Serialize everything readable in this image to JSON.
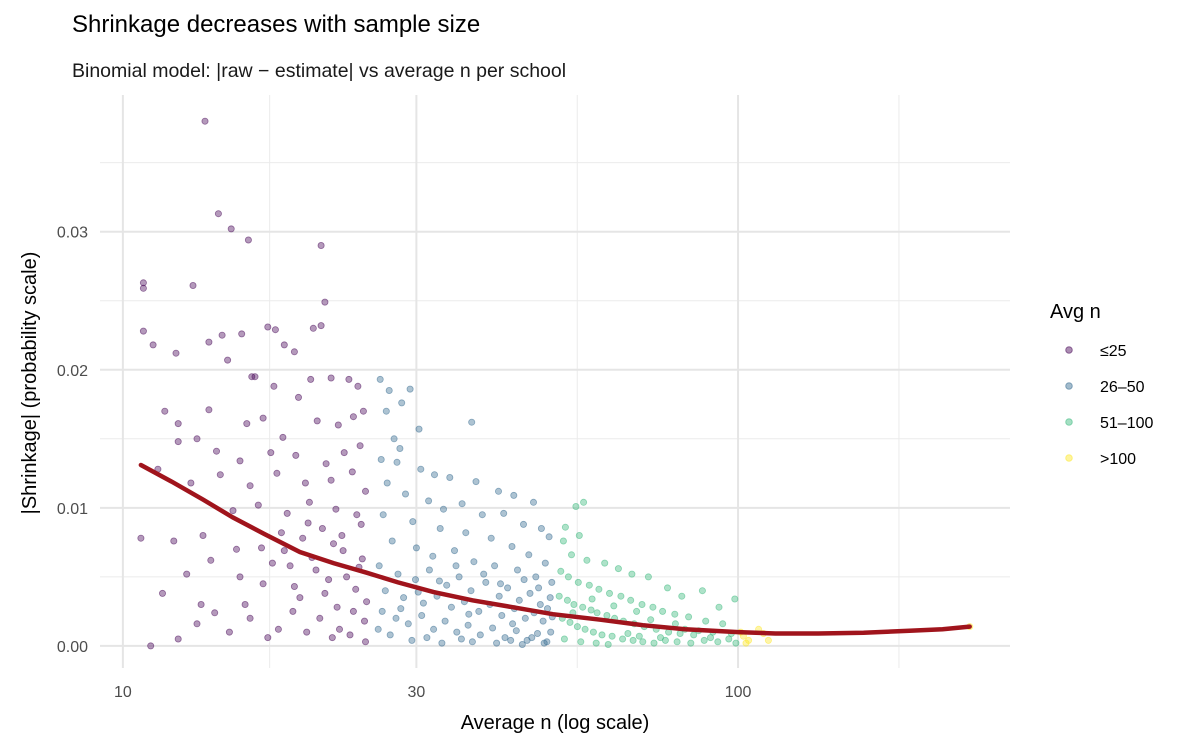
{
  "chart_data": {
    "type": "scatter",
    "title": "Shrinkage decreases with sample size",
    "subtitle": "Binomial model: |raw − estimate| vs average n per school",
    "xlabel": "Average n (log scale)",
    "ylabel": "|Shrinkage| (probability scale)",
    "x_scale": "log10",
    "xlim": [
      9.18,
      276.7
    ],
    "ylim": [
      -0.0016,
      0.0399
    ],
    "x_ticks": [
      10,
      30,
      100
    ],
    "x_tick_labels": [
      "10",
      "30",
      "100"
    ],
    "y_ticks": [
      0,
      0.01,
      0.02,
      0.03
    ],
    "y_tick_labels": [
      "0.00",
      "0.01",
      "0.02",
      "0.03"
    ],
    "grid": true,
    "legend": {
      "title": "Avg n",
      "placement": "right",
      "entries": [
        {
          "label": "≤25",
          "color": "#440154",
          "max_n": 25
        },
        {
          "label": "26–50",
          "color": "#31688E",
          "max_n": 50
        },
        {
          "label": "51–100",
          "color": "#35B779",
          "max_n": 100
        },
        {
          "label": ">100",
          "color": "#FDE725",
          "max_n": 100000
        }
      ]
    },
    "trend": {
      "color": "#A0141C",
      "points": [
        [
          10.7,
          0.0131
        ],
        [
          12,
          0.0119
        ],
        [
          13.5,
          0.0106
        ],
        [
          15.1,
          0.0093
        ],
        [
          17,
          0.0081
        ],
        [
          19.4,
          0.0068
        ],
        [
          22,
          0.006
        ],
        [
          24.9,
          0.0053
        ],
        [
          28,
          0.0046
        ],
        [
          32,
          0.0039
        ],
        [
          37,
          0.0033
        ],
        [
          43,
          0.0028
        ],
        [
          50,
          0.0023
        ],
        [
          59.7,
          0.0019
        ],
        [
          70,
          0.0015
        ],
        [
          82,
          0.0012
        ],
        [
          100,
          0.001
        ],
        [
          115,
          0.0009
        ],
        [
          135,
          0.0009
        ],
        [
          160,
          0.00095
        ],
        [
          190,
          0.0011
        ],
        [
          215,
          0.0012
        ],
        [
          238,
          0.0014
        ]
      ]
    },
    "points": [
      [
        13.6,
        0.038
      ],
      [
        14.3,
        0.0313
      ],
      [
        15,
        0.0302
      ],
      [
        16,
        0.0294
      ],
      [
        21,
        0.029
      ],
      [
        21.3,
        0.0249
      ],
      [
        10.8,
        0.0228
      ],
      [
        10.8,
        0.0263
      ],
      [
        10.8,
        0.0259
      ],
      [
        13,
        0.0261
      ],
      [
        11.2,
        0.0218
      ],
      [
        12.2,
        0.0212
      ],
      [
        13.8,
        0.022
      ],
      [
        14.5,
        0.0225
      ],
      [
        15.6,
        0.0226
      ],
      [
        17.2,
        0.0231
      ],
      [
        17.7,
        0.0229
      ],
      [
        20.4,
        0.023
      ],
      [
        21,
        0.0232
      ],
      [
        18.3,
        0.0218
      ],
      [
        19,
        0.0213
      ],
      [
        14.8,
        0.0207
      ],
      [
        16.2,
        0.0195
      ],
      [
        16.4,
        0.0195
      ],
      [
        17.6,
        0.0188
      ],
      [
        20.2,
        0.0193
      ],
      [
        21.8,
        0.0194
      ],
      [
        23.3,
        0.0193
      ],
      [
        24.1,
        0.0188
      ],
      [
        19.3,
        0.018
      ],
      [
        11.7,
        0.017
      ],
      [
        12.3,
        0.0161
      ],
      [
        13.8,
        0.0171
      ],
      [
        15.9,
        0.0161
      ],
      [
        16.9,
        0.0165
      ],
      [
        18.2,
        0.0151
      ],
      [
        20.7,
        0.0163
      ],
      [
        22.4,
        0.016
      ],
      [
        23.7,
        0.0166
      ],
      [
        24.6,
        0.017
      ],
      [
        12.3,
        0.0148
      ],
      [
        13.2,
        0.015
      ],
      [
        14.2,
        0.0141
      ],
      [
        15.5,
        0.0134
      ],
      [
        17.4,
        0.014
      ],
      [
        19.1,
        0.0138
      ],
      [
        21.4,
        0.0132
      ],
      [
        22.9,
        0.014
      ],
      [
        24.3,
        0.0145
      ],
      [
        11.4,
        0.0128
      ],
      [
        12.9,
        0.0118
      ],
      [
        14.4,
        0.0124
      ],
      [
        16.1,
        0.0116
      ],
      [
        17.8,
        0.0125
      ],
      [
        19.8,
        0.0118
      ],
      [
        21.8,
        0.012
      ],
      [
        23.6,
        0.0126
      ],
      [
        24.8,
        0.0112
      ],
      [
        10.7,
        0.0078
      ],
      [
        12.1,
        0.0076
      ],
      [
        13.5,
        0.008
      ],
      [
        15.1,
        0.0098
      ],
      [
        16.6,
        0.0102
      ],
      [
        18.5,
        0.0096
      ],
      [
        20.1,
        0.0104
      ],
      [
        22.2,
        0.0099
      ],
      [
        24.0,
        0.0095
      ],
      [
        11.6,
        0.0038
      ],
      [
        12.7,
        0.0052
      ],
      [
        13.9,
        0.0062
      ],
      [
        15.3,
        0.007
      ],
      [
        16.8,
        0.0071
      ],
      [
        18.1,
        0.0082
      ],
      [
        19.6,
        0.0078
      ],
      [
        21.1,
        0.0085
      ],
      [
        22.7,
        0.008
      ],
      [
        24.4,
        0.0088
      ],
      [
        12.3,
        0.0005
      ],
      [
        11.1,
        0.0
      ],
      [
        13.2,
        0.0016
      ],
      [
        14.1,
        0.0024
      ],
      [
        15.8,
        0.003
      ],
      [
        16.9,
        0.0045
      ],
      [
        17.9,
        0.0012
      ],
      [
        18.7,
        0.0058
      ],
      [
        19.4,
        0.0035
      ],
      [
        20.3,
        0.0064
      ],
      [
        20.9,
        0.002
      ],
      [
        21.6,
        0.0048
      ],
      [
        22.3,
        0.0028
      ],
      [
        22.8,
        0.0069
      ],
      [
        23.4,
        0.0008
      ],
      [
        23.9,
        0.0041
      ],
      [
        24.2,
        0.0057
      ],
      [
        24.7,
        0.0018
      ],
      [
        24.9,
        0.0032
      ],
      [
        21.9,
        0.0006
      ],
      [
        19.9,
        0.001
      ],
      [
        18.9,
        0.0025
      ],
      [
        17.2,
        0.0006
      ],
      [
        16.1,
        0.002
      ],
      [
        14.9,
        0.001
      ],
      [
        23.1,
        0.005
      ],
      [
        24.5,
        0.0063
      ],
      [
        22.0,
        0.0074
      ],
      [
        20.6,
        0.0055
      ],
      [
        19.0,
        0.0043
      ],
      [
        17.5,
        0.006
      ],
      [
        15.5,
        0.005
      ],
      [
        13.4,
        0.003
      ],
      [
        24.8,
        0.0003
      ],
      [
        23.7,
        0.0025
      ],
      [
        22.5,
        0.0012
      ],
      [
        21.3,
        0.0038
      ],
      [
        20.0,
        0.0089
      ],
      [
        18.3,
        0.0069
      ],
      [
        26.2,
        0.0193
      ],
      [
        27.1,
        0.0185
      ],
      [
        29.3,
        0.0186
      ],
      [
        28.4,
        0.0176
      ],
      [
        26.8,
        0.017
      ],
      [
        30.3,
        0.0157
      ],
      [
        36.9,
        0.0162
      ],
      [
        27.6,
        0.015
      ],
      [
        28.2,
        0.0143
      ],
      [
        26.3,
        0.0135
      ],
      [
        27.9,
        0.0133
      ],
      [
        30.5,
        0.0128
      ],
      [
        32.1,
        0.0124
      ],
      [
        34.0,
        0.0122
      ],
      [
        37.5,
        0.0119
      ],
      [
        40.8,
        0.0112
      ],
      [
        43.2,
        0.0109
      ],
      [
        46.5,
        0.0104
      ],
      [
        26.9,
        0.0118
      ],
      [
        28.8,
        0.011
      ],
      [
        31.4,
        0.0105
      ],
      [
        33.2,
        0.0099
      ],
      [
        35.6,
        0.0103
      ],
      [
        38.4,
        0.0095
      ],
      [
        41.6,
        0.0096
      ],
      [
        44.8,
        0.0088
      ],
      [
        47.9,
        0.0085
      ],
      [
        49.3,
        0.0079
      ],
      [
        26.5,
        0.0095
      ],
      [
        29.6,
        0.009
      ],
      [
        32.8,
        0.0085
      ],
      [
        36.1,
        0.0082
      ],
      [
        39.7,
        0.0078
      ],
      [
        42.9,
        0.0072
      ],
      [
        45.7,
        0.0066
      ],
      [
        48.6,
        0.006
      ],
      [
        27.4,
        0.0076
      ],
      [
        30.0,
        0.0071
      ],
      [
        31.9,
        0.0065
      ],
      [
        34.6,
        0.0069
      ],
      [
        37.2,
        0.0061
      ],
      [
        40.2,
        0.0058
      ],
      [
        43.8,
        0.0055
      ],
      [
        46.9,
        0.005
      ],
      [
        49.8,
        0.0046
      ],
      [
        26.1,
        0.0058
      ],
      [
        28.0,
        0.0052
      ],
      [
        29.9,
        0.0048
      ],
      [
        31.5,
        0.0055
      ],
      [
        33.6,
        0.0044
      ],
      [
        35.2,
        0.005
      ],
      [
        36.8,
        0.004
      ],
      [
        38.9,
        0.0046
      ],
      [
        40.9,
        0.0036
      ],
      [
        42.2,
        0.0042
      ],
      [
        44.1,
        0.0033
      ],
      [
        45.9,
        0.0038
      ],
      [
        47.7,
        0.003
      ],
      [
        49.5,
        0.0035
      ],
      [
        26.7,
        0.004
      ],
      [
        28.6,
        0.0035
      ],
      [
        30.8,
        0.0031
      ],
      [
        32.4,
        0.0036
      ],
      [
        34.2,
        0.0028
      ],
      [
        35.9,
        0.0032
      ],
      [
        37.9,
        0.0025
      ],
      [
        39.5,
        0.003
      ],
      [
        41.3,
        0.0022
      ],
      [
        43.3,
        0.0027
      ],
      [
        45.1,
        0.002
      ],
      [
        46.6,
        0.0024
      ],
      [
        48.2,
        0.0018
      ],
      [
        49.9,
        0.0021
      ],
      [
        26.4,
        0.0025
      ],
      [
        27.8,
        0.002
      ],
      [
        29.1,
        0.0016
      ],
      [
        30.6,
        0.0022
      ],
      [
        32.0,
        0.0012
      ],
      [
        33.4,
        0.0018
      ],
      [
        34.9,
        0.001
      ],
      [
        36.4,
        0.0015
      ],
      [
        38.1,
        0.0008
      ],
      [
        39.9,
        0.0013
      ],
      [
        41.8,
        0.0006
      ],
      [
        43.6,
        0.0011
      ],
      [
        45.4,
        0.0004
      ],
      [
        47.2,
        0.0009
      ],
      [
        48.9,
        0.0003
      ],
      [
        27.2,
        0.0008
      ],
      [
        29.5,
        0.0004
      ],
      [
        31.2,
        0.0006
      ],
      [
        33.0,
        0.0002
      ],
      [
        35.5,
        0.0005
      ],
      [
        37.0,
        0.0003
      ],
      [
        40.5,
        0.0002
      ],
      [
        42.7,
        0.0004
      ],
      [
        44.6,
        0.0001
      ],
      [
        46.2,
        0.0006
      ],
      [
        48.4,
        0.0002
      ],
      [
        49.6,
        0.001
      ],
      [
        26.0,
        0.0012
      ],
      [
        28.3,
        0.0027
      ],
      [
        30.2,
        0.0039
      ],
      [
        32.7,
        0.0047
      ],
      [
        34.8,
        0.0058
      ],
      [
        36.5,
        0.0023
      ],
      [
        38.6,
        0.0052
      ],
      [
        41.1,
        0.0045
      ],
      [
        43.0,
        0.0016
      ],
      [
        44.9,
        0.0048
      ],
      [
        47.4,
        0.0042
      ],
      [
        49.0,
        0.0027
      ],
      [
        54.5,
        0.0101
      ],
      [
        56.1,
        0.0104
      ],
      [
        52.4,
        0.0086
      ],
      [
        55.2,
        0.008
      ],
      [
        52.0,
        0.0076
      ],
      [
        53.6,
        0.0066
      ],
      [
        56.8,
        0.0062
      ],
      [
        60.7,
        0.006
      ],
      [
        63.9,
        0.0056
      ],
      [
        67.2,
        0.0052
      ],
      [
        71.5,
        0.005
      ],
      [
        76.8,
        0.0042
      ],
      [
        81.0,
        0.0036
      ],
      [
        87.5,
        0.004
      ],
      [
        93.1,
        0.0028
      ],
      [
        98.8,
        0.0034
      ],
      [
        51.5,
        0.0054
      ],
      [
        53.0,
        0.005
      ],
      [
        55.0,
        0.0046
      ],
      [
        57.3,
        0.0044
      ],
      [
        59.4,
        0.0041
      ],
      [
        61.8,
        0.0038
      ],
      [
        64.5,
        0.0036
      ],
      [
        66.9,
        0.0033
      ],
      [
        69.8,
        0.003
      ],
      [
        72.7,
        0.0028
      ],
      [
        75.4,
        0.0025
      ],
      [
        78.9,
        0.0023
      ],
      [
        83.1,
        0.0021
      ],
      [
        88.6,
        0.0018
      ],
      [
        94.4,
        0.0016
      ],
      [
        51.2,
        0.0036
      ],
      [
        52.8,
        0.0033
      ],
      [
        54.1,
        0.003
      ],
      [
        55.9,
        0.0028
      ],
      [
        57.7,
        0.0026
      ],
      [
        59.0,
        0.0024
      ],
      [
        61.2,
        0.0022
      ],
      [
        63.0,
        0.002
      ],
      [
        65.1,
        0.0018
      ],
      [
        67.8,
        0.0016
      ],
      [
        70.4,
        0.0014
      ],
      [
        73.6,
        0.0012
      ],
      [
        77.1,
        0.001
      ],
      [
        80.5,
        0.0009
      ],
      [
        84.7,
        0.0008
      ],
      [
        90.2,
        0.0006
      ],
      [
        96.6,
        0.0005
      ],
      [
        51.8,
        0.002
      ],
      [
        53.3,
        0.0017
      ],
      [
        54.8,
        0.0014
      ],
      [
        56.4,
        0.0012
      ],
      [
        58.2,
        0.001
      ],
      [
        60.1,
        0.0008
      ],
      [
        62.4,
        0.0007
      ],
      [
        64.9,
        0.0005
      ],
      [
        67.5,
        0.0004
      ],
      [
        70.0,
        0.0003
      ],
      [
        73.0,
        0.0002
      ],
      [
        76.2,
        0.0004
      ],
      [
        79.6,
        0.0003
      ],
      [
        83.8,
        0.0002
      ],
      [
        88.1,
        0.0004
      ],
      [
        92.7,
        0.0003
      ],
      [
        99.2,
        0.0002
      ],
      [
        52.2,
        0.0005
      ],
      [
        55.5,
        0.0003
      ],
      [
        58.8,
        0.0002
      ],
      [
        61.5,
        0.0001
      ],
      [
        66.2,
        0.0009
      ],
      [
        69.1,
        0.0007
      ],
      [
        74.8,
        0.0006
      ],
      [
        82.0,
        0.0012
      ],
      [
        86.3,
        0.0011
      ],
      [
        91.0,
        0.001
      ],
      [
        97.5,
        0.0009
      ],
      [
        53.9,
        0.0024
      ],
      [
        57.9,
        0.0034
      ],
      [
        62.8,
        0.0029
      ],
      [
        68.4,
        0.0025
      ],
      [
        72.1,
        0.0019
      ],
      [
        79.1,
        0.0016
      ],
      [
        101,
        0.001
      ],
      [
        102,
        0.0007
      ],
      [
        104,
        0.0004
      ],
      [
        108,
        0.0012
      ],
      [
        110,
        0.0009
      ],
      [
        112,
        0.0004
      ],
      [
        103,
        0.0002
      ],
      [
        238,
        0.0014
      ]
    ]
  }
}
